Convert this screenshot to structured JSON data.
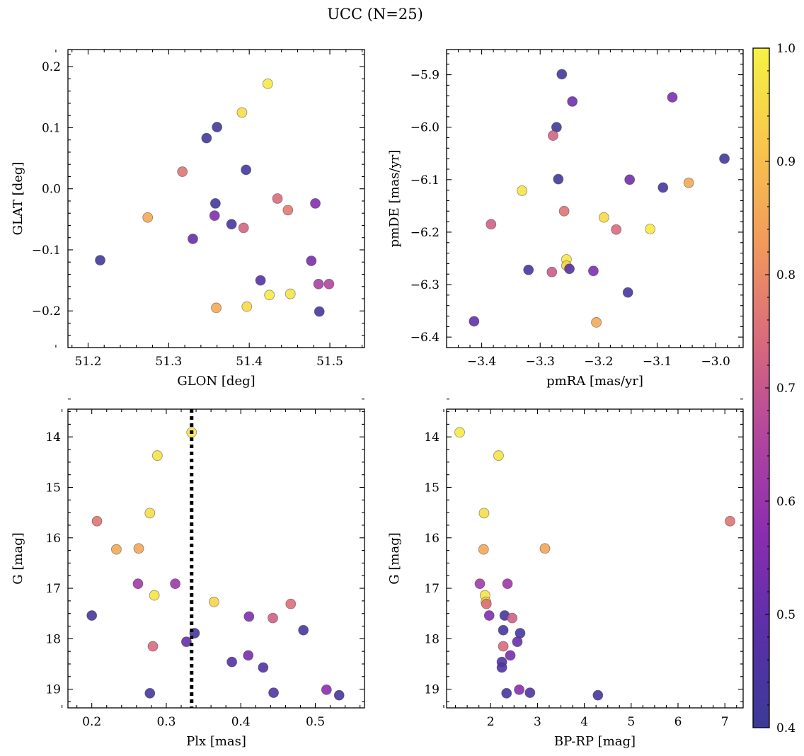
{
  "figure": {
    "title": "UCC (N=25)"
  },
  "colorbar": {
    "range": [
      0.4,
      1.0
    ],
    "ticks": [
      0.4,
      0.5,
      0.6,
      0.7,
      0.8,
      0.9,
      1.0
    ],
    "ticklabels": [
      "0.4",
      "0.5",
      "0.6",
      "0.7",
      "0.8",
      "0.9",
      "1.0"
    ],
    "colormap": "plasma",
    "colors": [
      "#3b3a98",
      "#5a30a8",
      "#8a2db0",
      "#b2459e",
      "#d96b7c",
      "#f29a5c",
      "#f8c64c",
      "#f6f345"
    ]
  },
  "chart_data": [
    {
      "type": "scatter",
      "panel": "top-left",
      "xlabel": "GLON [deg]",
      "ylabel": "GLAT [deg]",
      "xlim": [
        51.175,
        51.543
      ],
      "ylim": [
        -0.26,
        0.228
      ],
      "xticks": [
        51.2,
        51.3,
        51.4,
        51.5
      ],
      "xticklabels": [
        "51.2",
        "51.3",
        "51.4",
        "51.5"
      ],
      "yticks": [
        -0.2,
        -0.1,
        0.0,
        0.1,
        0.2
      ],
      "yticklabels": [
        "−0.2",
        "−0.1",
        "0.0",
        "0.1",
        "0.2"
      ],
      "points": [
        {
          "x": 51.423,
          "y": 0.172,
          "c": 0.98
        },
        {
          "x": 51.391,
          "y": 0.125,
          "c": 0.96
        },
        {
          "x": 51.36,
          "y": 0.101,
          "c": 0.42
        },
        {
          "x": 51.347,
          "y": 0.083,
          "c": 0.42
        },
        {
          "x": 51.396,
          "y": 0.031,
          "c": 0.42
        },
        {
          "x": 51.317,
          "y": 0.028,
          "c": 0.76
        },
        {
          "x": 51.358,
          "y": -0.024,
          "c": 0.42
        },
        {
          "x": 51.435,
          "y": -0.016,
          "c": 0.74
        },
        {
          "x": 51.482,
          "y": -0.024,
          "c": 0.56
        },
        {
          "x": 51.448,
          "y": -0.035,
          "c": 0.77
        },
        {
          "x": 51.357,
          "y": -0.044,
          "c": 0.55
        },
        {
          "x": 51.274,
          "y": -0.047,
          "c": 0.86
        },
        {
          "x": 51.378,
          "y": -0.058,
          "c": 0.44
        },
        {
          "x": 51.393,
          "y": -0.064,
          "c": 0.73
        },
        {
          "x": 51.33,
          "y": -0.082,
          "c": 0.5
        },
        {
          "x": 51.215,
          "y": -0.117,
          "c": 0.42
        },
        {
          "x": 51.477,
          "y": -0.118,
          "c": 0.54
        },
        {
          "x": 51.414,
          "y": -0.15,
          "c": 0.47
        },
        {
          "x": 51.486,
          "y": -0.156,
          "c": 0.64
        },
        {
          "x": 51.499,
          "y": -0.156,
          "c": 0.66
        },
        {
          "x": 51.451,
          "y": -0.172,
          "c": 0.97
        },
        {
          "x": 51.425,
          "y": -0.174,
          "c": 0.98
        },
        {
          "x": 51.359,
          "y": -0.195,
          "c": 0.86
        },
        {
          "x": 51.397,
          "y": -0.193,
          "c": 0.95
        },
        {
          "x": 51.487,
          "y": -0.201,
          "c": 0.43
        }
      ]
    },
    {
      "type": "scatter",
      "panel": "top-right",
      "xlabel": "pmRA [mas/yr]",
      "ylabel": "pmDE [mas/yr]",
      "xlim": [
        -3.46,
        -2.953
      ],
      "ylim": [
        -6.42,
        -5.852
      ],
      "xticks": [
        -3.4,
        -3.3,
        -3.2,
        -3.1,
        -3.0
      ],
      "xticklabels": [
        "−3.4",
        "−3.3",
        "−3.2",
        "−3.1",
        "−3.0"
      ],
      "yticks": [
        -6.4,
        -6.3,
        -6.2,
        -6.1,
        -6.0,
        -5.9
      ],
      "yticklabels": [
        "−6.4",
        "−6.3",
        "−6.2",
        "−6.1",
        "−6.0",
        "−5.9"
      ],
      "points": [
        {
          "x": -3.263,
          "y": -5.899,
          "c": 0.42
        },
        {
          "x": -3.245,
          "y": -5.951,
          "c": 0.52
        },
        {
          "x": -3.074,
          "y": -5.943,
          "c": 0.55
        },
        {
          "x": -3.272,
          "y": -6.0,
          "c": 0.42
        },
        {
          "x": -3.278,
          "y": -6.016,
          "c": 0.73
        },
        {
          "x": -2.985,
          "y": -6.06,
          "c": 0.42
        },
        {
          "x": -3.269,
          "y": -6.099,
          "c": 0.42
        },
        {
          "x": -3.147,
          "y": -6.1,
          "c": 0.53
        },
        {
          "x": -3.09,
          "y": -6.115,
          "c": 0.43
        },
        {
          "x": -3.046,
          "y": -6.106,
          "c": 0.86
        },
        {
          "x": -3.331,
          "y": -6.121,
          "c": 0.97
        },
        {
          "x": -3.259,
          "y": -6.16,
          "c": 0.76
        },
        {
          "x": -3.191,
          "y": -6.172,
          "c": 0.95
        },
        {
          "x": -3.384,
          "y": -6.185,
          "c": 0.72
        },
        {
          "x": -3.17,
          "y": -6.195,
          "c": 0.74
        },
        {
          "x": -3.112,
          "y": -6.194,
          "c": 0.98
        },
        {
          "x": -3.255,
          "y": -6.252,
          "c": 0.98
        },
        {
          "x": -3.255,
          "y": -6.264,
          "c": 0.93
        },
        {
          "x": -3.25,
          "y": -6.27,
          "c": 0.48
        },
        {
          "x": -3.32,
          "y": -6.272,
          "c": 0.44
        },
        {
          "x": -3.28,
          "y": -6.276,
          "c": 0.71
        },
        {
          "x": -3.209,
          "y": -6.274,
          "c": 0.55
        },
        {
          "x": -3.15,
          "y": -6.315,
          "c": 0.43
        },
        {
          "x": -3.204,
          "y": -6.372,
          "c": 0.86
        },
        {
          "x": -3.413,
          "y": -6.37,
          "c": 0.5
        }
      ]
    },
    {
      "type": "scatter",
      "panel": "bottom-left",
      "xlabel": "Plx [mas]",
      "ylabel": "G [mag]",
      "xlim": [
        0.168,
        0.566
      ],
      "ylim": [
        19.37,
        13.45
      ],
      "y_inverted": true,
      "xticks": [
        0.2,
        0.3,
        0.4,
        0.5
      ],
      "xticklabels": [
        "0.2",
        "0.3",
        "0.4",
        "0.5"
      ],
      "yticks": [
        14,
        15,
        16,
        17,
        18,
        19
      ],
      "yticklabels": [
        "14",
        "15",
        "16",
        "17",
        "18",
        "19"
      ],
      "vline": {
        "x": 0.334,
        "style": "dotted"
      },
      "points": [
        {
          "x": 0.334,
          "y": 13.91,
          "c": 0.98
        },
        {
          "x": 0.288,
          "y": 14.37,
          "c": 0.97
        },
        {
          "x": 0.278,
          "y": 15.51,
          "c": 0.96
        },
        {
          "x": 0.207,
          "y": 15.67,
          "c": 0.76
        },
        {
          "x": 0.233,
          "y": 16.23,
          "c": 0.86
        },
        {
          "x": 0.263,
          "y": 16.21,
          "c": 0.85
        },
        {
          "x": 0.262,
          "y": 16.91,
          "c": 0.62
        },
        {
          "x": 0.312,
          "y": 16.91,
          "c": 0.61
        },
        {
          "x": 0.284,
          "y": 17.14,
          "c": 0.97
        },
        {
          "x": 0.364,
          "y": 17.27,
          "c": 0.94
        },
        {
          "x": 0.467,
          "y": 17.31,
          "c": 0.75
        },
        {
          "x": 0.2,
          "y": 17.54,
          "c": 0.43
        },
        {
          "x": 0.411,
          "y": 17.56,
          "c": 0.55
        },
        {
          "x": 0.443,
          "y": 17.59,
          "c": 0.72
        },
        {
          "x": 0.484,
          "y": 17.83,
          "c": 0.43
        },
        {
          "x": 0.338,
          "y": 17.89,
          "c": 0.43
        },
        {
          "x": 0.327,
          "y": 18.06,
          "c": 0.51
        },
        {
          "x": 0.282,
          "y": 18.15,
          "c": 0.74
        },
        {
          "x": 0.41,
          "y": 18.33,
          "c": 0.54
        },
        {
          "x": 0.388,
          "y": 18.46,
          "c": 0.47
        },
        {
          "x": 0.43,
          "y": 18.57,
          "c": 0.46
        },
        {
          "x": 0.278,
          "y": 19.08,
          "c": 0.44
        },
        {
          "x": 0.444,
          "y": 19.07,
          "c": 0.46
        },
        {
          "x": 0.515,
          "y": 19.01,
          "c": 0.57
        },
        {
          "x": 0.532,
          "y": 19.12,
          "c": 0.44
        }
      ]
    },
    {
      "type": "scatter",
      "panel": "bottom-right",
      "xlabel": "BP-RP [mag]",
      "ylabel": "G [mag]",
      "xlim": [
        1.06,
        7.39
      ],
      "ylim": [
        19.37,
        13.45
      ],
      "y_inverted": true,
      "xticks": [
        2,
        3,
        4,
        5,
        6,
        7
      ],
      "xticklabels": [
        "2",
        "3",
        "4",
        "5",
        "6",
        "7"
      ],
      "yticks": [
        14,
        15,
        16,
        17,
        18,
        19
      ],
      "yticklabels": [
        "14",
        "15",
        "16",
        "17",
        "18",
        "19"
      ],
      "points": [
        {
          "x": 1.34,
          "y": 13.91,
          "c": 0.98
        },
        {
          "x": 2.17,
          "y": 14.37,
          "c": 0.97
        },
        {
          "x": 1.86,
          "y": 15.51,
          "c": 0.96
        },
        {
          "x": 7.11,
          "y": 15.67,
          "c": 0.76
        },
        {
          "x": 1.85,
          "y": 16.23,
          "c": 0.86
        },
        {
          "x": 3.16,
          "y": 16.21,
          "c": 0.85
        },
        {
          "x": 1.77,
          "y": 16.91,
          "c": 0.62
        },
        {
          "x": 2.36,
          "y": 16.91,
          "c": 0.61
        },
        {
          "x": 1.88,
          "y": 17.14,
          "c": 0.97
        },
        {
          "x": 1.9,
          "y": 17.27,
          "c": 0.94
        },
        {
          "x": 1.91,
          "y": 17.31,
          "c": 0.75
        },
        {
          "x": 1.97,
          "y": 17.54,
          "c": 0.55
        },
        {
          "x": 2.3,
          "y": 17.54,
          "c": 0.43
        },
        {
          "x": 2.46,
          "y": 17.59,
          "c": 0.72
        },
        {
          "x": 2.27,
          "y": 17.83,
          "c": 0.43
        },
        {
          "x": 2.63,
          "y": 17.89,
          "c": 0.43
        },
        {
          "x": 2.57,
          "y": 18.06,
          "c": 0.51
        },
        {
          "x": 2.27,
          "y": 18.15,
          "c": 0.74
        },
        {
          "x": 2.42,
          "y": 18.33,
          "c": 0.54
        },
        {
          "x": 2.24,
          "y": 18.46,
          "c": 0.47
        },
        {
          "x": 2.24,
          "y": 18.57,
          "c": 0.46
        },
        {
          "x": 2.61,
          "y": 19.01,
          "c": 0.57
        },
        {
          "x": 2.34,
          "y": 19.08,
          "c": 0.44
        },
        {
          "x": 2.84,
          "y": 19.07,
          "c": 0.46
        },
        {
          "x": 4.29,
          "y": 19.12,
          "c": 0.44
        }
      ]
    }
  ]
}
